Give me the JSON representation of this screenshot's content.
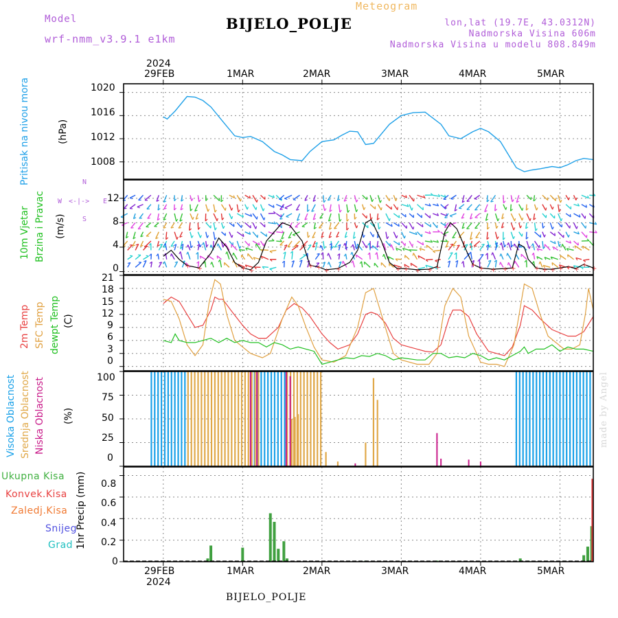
{
  "header": {
    "model_label": "Model",
    "model_name": "wrf-nmm_v3.9.1 e1km",
    "meteogram_label": "Meteogram",
    "station": "BIJELO_POLJE",
    "lonlat": "lon,lat (19.7E, 43.0312N)",
    "elevation": "Nadmorska Visina 606m",
    "model_elevation": "Nadmorska Visina u modelu 808.849m"
  },
  "time_axis": {
    "labels": [
      "29FEB",
      "1MAR",
      "2MAR",
      "3MAR",
      "4MAR",
      "5MAR"
    ],
    "year": "2024"
  },
  "panels": {
    "pressure": {
      "label": "Pritisak na nivou mora",
      "unit": "(hPa)",
      "ticks": [
        "1020",
        "1016",
        "1012",
        "1008"
      ]
    },
    "wind": {
      "label_1": "10m Vjetar",
      "label_2": "Brzina i Pravac",
      "unit": "(m/s)",
      "ticks": [
        "12",
        "8",
        "4",
        "0"
      ],
      "compass_w": "W",
      "compass_e": "E",
      "compass_n": "N",
      "compass_s": "S"
    },
    "temp": {
      "label_1": "2m Temp",
      "label_2": "SFC Temp",
      "label_3": "dewpt Temp",
      "unit": "(C)",
      "ticks": [
        "21",
        "18",
        "15",
        "12",
        "9",
        "6",
        "3",
        "0"
      ]
    },
    "cloud": {
      "label_1": "Visoka Oblacnost",
      "label_2": "Srednja Oblacnost",
      "label_3": "Niska Oblacnost",
      "unit": "(%)",
      "ticks": [
        "100",
        "75",
        "50",
        "25",
        "0"
      ]
    },
    "precip": {
      "label": "1hr Precip (mm)",
      "ticks": [
        "0.8",
        "0.6",
        "0.4",
        "0.2",
        "0"
      ],
      "legend": [
        "Ukupna Kisa",
        "Konvek.Kisa",
        "Zaledj.Kisa",
        "Snijeg",
        "Grad"
      ]
    }
  },
  "footer": {
    "station": "BIJELO_POLJE",
    "credit": "made by Angel"
  },
  "colors": {
    "pressure": "#1ea0e8",
    "temp2m": "#e84040",
    "sfc": "#e0a040",
    "dewpt": "#20c020",
    "cloud_high": "#18a0e8",
    "cloud_mid": "#e0a848",
    "cloud_low": "#c81888",
    "rain_total": "#40a040",
    "rain_conv": "#e84040",
    "rain_frz": "#f07830",
    "snow": "#5050e0",
    "hail": "#20c0c0",
    "grid": "#888888"
  },
  "chart_data": [
    {
      "type": "line",
      "title": "Pritisak na nivou mora",
      "ylabel": "(hPa)",
      "ylim": [
        1005,
        1021.5
      ],
      "x_unit": "day (0 = 29FEB 00:00)",
      "series": [
        {
          "x": [
            0,
            0.05,
            0.15,
            0.3,
            0.4,
            0.5,
            0.6,
            0.75,
            0.9,
            1.0,
            1.1,
            1.25,
            1.4,
            1.5,
            1.6,
            1.75,
            1.85,
            2.0,
            2.15,
            2.25,
            2.35,
            2.45,
            2.55,
            2.65,
            2.85,
            3.0,
            3.15,
            3.3,
            3.5,
            3.6,
            3.75,
            3.9,
            4.0,
            4.1,
            4.25,
            4.45,
            4.55,
            4.65,
            4.75,
            4.9,
            5.0,
            5.1,
            5.2,
            5.3,
            5.42
          ],
          "values": [
            1015.8,
            1015.4,
            1016.8,
            1019.3,
            1019.2,
            1018.6,
            1017.5,
            1015,
            1012.5,
            1012.2,
            1012.4,
            1011.5,
            1009.8,
            1009.2,
            1008.4,
            1008.2,
            1009.8,
            1011.5,
            1011.8,
            1012.6,
            1013.3,
            1013.2,
            1011,
            1011.2,
            1014.5,
            1016,
            1016.5,
            1016.6,
            1014.5,
            1012.5,
            1012,
            1013.2,
            1013.8,
            1013.2,
            1011.5,
            1007,
            1006.3,
            1006.6,
            1006.8,
            1007.2,
            1007,
            1007.5,
            1008.2,
            1008.6,
            1008.4
          ]
        }
      ]
    },
    {
      "type": "line",
      "title": "10m Vjetar Brzina i Pravac",
      "ylabel": "(m/s)",
      "ylim": [
        -0.5,
        15
      ],
      "x_unit": "day (0 = 29FEB 00:00)",
      "series": [
        {
          "x": [
            0,
            0.1,
            0.2,
            0.3,
            0.45,
            0.6,
            0.7,
            0.8,
            0.9,
            1.0,
            1.1,
            1.2,
            1.3,
            1.4,
            1.5,
            1.6,
            1.75,
            1.85,
            1.95,
            2.05,
            2.2,
            2.35,
            2.45,
            2.55,
            2.62,
            2.75,
            2.85,
            2.95,
            3.05,
            3.2,
            3.35,
            3.45,
            3.55,
            3.62,
            3.7,
            3.8,
            3.9,
            4.0,
            4.15,
            4.3,
            4.4,
            4.48,
            4.55,
            4.6,
            4.7,
            4.8,
            4.9,
            5.0,
            5.1,
            5.2,
            5.3,
            5.42
          ],
          "values": [
            2.5,
            3.5,
            2,
            1,
            0.6,
            3,
            5.5,
            4,
            1.5,
            0.6,
            0.3,
            1.5,
            5,
            6.5,
            8,
            7.5,
            5,
            1,
            0.8,
            0.3,
            0.5,
            1.5,
            3.5,
            8,
            8.5,
            5,
            1.5,
            0.5,
            0.5,
            0.3,
            0.4,
            0.8,
            6.5,
            8,
            7,
            4,
            1.2,
            0.6,
            0.4,
            0.5,
            0.6,
            4.5,
            4,
            2,
            0.6,
            0.4,
            0.4,
            0.6,
            0.8,
            0.5,
            1.2,
            0.6
          ]
        }
      ]
    },
    {
      "type": "line",
      "title": "Temp",
      "ylabel": "(C)",
      "ylim": [
        -1,
        21
      ],
      "x_unit": "day (0 = 29FEB 00:00)",
      "series": [
        {
          "name": "2m Temp",
          "x": [
            0,
            0.1,
            0.2,
            0.3,
            0.4,
            0.5,
            0.6,
            0.65,
            0.7,
            0.75,
            0.85,
            1.0,
            1.1,
            1.2,
            1.3,
            1.45,
            1.55,
            1.65,
            1.75,
            1.85,
            2.0,
            2.1,
            2.2,
            2.35,
            2.45,
            2.55,
            2.62,
            2.7,
            2.8,
            2.9,
            3.0,
            3.2,
            3.3,
            3.4,
            3.5,
            3.6,
            3.65,
            3.75,
            3.85,
            3.95,
            4.1,
            4.2,
            4.3,
            4.4,
            4.5,
            4.55,
            4.65,
            4.75,
            4.9,
            5.1,
            5.2,
            5.3,
            5.42
          ],
          "values": [
            14.5,
            16,
            15,
            12,
            9,
            9.5,
            13,
            16,
            15.5,
            15.5,
            13,
            9.5,
            7.5,
            6.5,
            6.5,
            9,
            13,
            14.5,
            13.5,
            11.5,
            7.5,
            5.5,
            4,
            5,
            7.5,
            12,
            12.5,
            12,
            10,
            6.5,
            5,
            4,
            3.5,
            3.3,
            5,
            11,
            13,
            13,
            11.5,
            7.5,
            3.5,
            3,
            2.5,
            4.5,
            9.5,
            14,
            13,
            11,
            8.5,
            7,
            7,
            8,
            11.5
          ]
        },
        {
          "name": "SFC Temp",
          "x": [
            0,
            0.1,
            0.2,
            0.3,
            0.4,
            0.5,
            0.58,
            0.65,
            0.72,
            0.8,
            0.9,
            1.0,
            1.1,
            1.25,
            1.35,
            1.5,
            1.62,
            1.7,
            1.8,
            1.9,
            2.0,
            2.15,
            2.3,
            2.45,
            2.55,
            2.65,
            2.75,
            2.9,
            3.0,
            3.2,
            3.35,
            3.45,
            3.55,
            3.65,
            3.75,
            3.85,
            4.0,
            4.1,
            4.2,
            4.3,
            4.42,
            4.55,
            4.65,
            4.75,
            4.85,
            5.05,
            5.15,
            5.25,
            5.32,
            5.36,
            5.42
          ],
          "values": [
            15.5,
            15,
            11,
            5,
            2.5,
            5,
            15,
            20,
            19,
            12,
            6,
            4.5,
            3,
            2,
            3,
            11,
            16,
            14,
            9,
            4.5,
            1.5,
            1,
            2.5,
            9,
            17,
            18,
            12,
            3,
            1.5,
            0.5,
            0.5,
            3,
            14,
            18,
            16,
            7,
            1,
            0.5,
            0.5,
            0,
            5,
            19,
            18,
            12,
            7,
            4,
            4,
            5,
            12,
            18,
            13
          ]
        },
        {
          "name": "dewpt Temp",
          "x": [
            0,
            0.1,
            0.15,
            0.2,
            0.3,
            0.4,
            0.5,
            0.6,
            0.7,
            0.8,
            0.9,
            1.0,
            1.1,
            1.2,
            1.3,
            1.4,
            1.5,
            1.6,
            1.7,
            1.8,
            1.9,
            2.0,
            2.1,
            2.3,
            2.4,
            2.5,
            2.6,
            2.7,
            2.8,
            2.9,
            3.0,
            3.2,
            3.3,
            3.4,
            3.5,
            3.6,
            3.7,
            3.8,
            3.9,
            4.0,
            4.1,
            4.2,
            4.3,
            4.4,
            4.5,
            4.55,
            4.6,
            4.7,
            4.8,
            4.9,
            5.0,
            5.1,
            5.2,
            5.3,
            5.42
          ],
          "values": [
            6,
            5.5,
            7.5,
            6,
            5.5,
            5.5,
            6,
            6.5,
            5.5,
            6.5,
            5.5,
            6,
            5.5,
            5.5,
            4.5,
            5.5,
            5,
            4,
            4.5,
            4,
            3.5,
            0.5,
            1,
            2,
            1.8,
            2.5,
            2.3,
            3,
            2.5,
            1.5,
            2,
            1.5,
            1.5,
            3,
            3,
            2,
            2.3,
            2,
            3,
            2.5,
            1.5,
            2,
            1.5,
            2.5,
            3.5,
            4.5,
            3,
            4,
            4,
            5,
            3.5,
            4.5,
            4,
            4,
            3.5
          ]
        }
      ]
    },
    {
      "type": "bar",
      "title": "Oblacnost",
      "ylabel": "(%)",
      "ylim": [
        0,
        100
      ],
      "x_unit": "day (0 = 29FEB 00:00)",
      "series": [
        {
          "name": "Visoka Oblacnost",
          "ranges": [
            [
              -0.15,
              0.3,
              100
            ],
            [
              1.15,
              1.55,
              100
            ],
            [
              4.45,
              5.42,
              100
            ]
          ]
        },
        {
          "name": "Srednja Oblacnost",
          "ranges": [
            [
              0.3,
              1.2,
              100
            ],
            [
              1.55,
              2.0,
              100
            ]
          ],
          "bars": [
            [
              1.62,
              50
            ],
            [
              1.66,
              52
            ],
            [
              1.7,
              55
            ],
            [
              1.9,
              100
            ],
            [
              2.05,
              15
            ],
            [
              2.2,
              5
            ],
            [
              2.55,
              25
            ],
            [
              2.65,
              93
            ],
            [
              2.7,
              70
            ]
          ]
        },
        {
          "name": "Niska Oblacnost",
          "bars": [
            [
              1.1,
              100
            ],
            [
              1.18,
              100
            ],
            [
              1.55,
              100
            ],
            [
              1.6,
              95
            ],
            [
              2.42,
              3
            ],
            [
              3.45,
              35
            ],
            [
              3.5,
              8
            ],
            [
              3.85,
              7
            ],
            [
              4.0,
              5
            ]
          ]
        }
      ]
    },
    {
      "type": "bar",
      "title": "1hr Precip (mm)",
      "ylabel": "1hr Precip (mm)",
      "ylim": [
        0,
        0.88
      ],
      "x_unit": "day (0 = 29FEB 00:00)",
      "series": [
        {
          "name": "Ukupna Kisa",
          "x": [
            0.56,
            0.6,
            1.0,
            1.35,
            1.4,
            1.45,
            1.52,
            1.56,
            2.55,
            3.45,
            4.5,
            4.6,
            5.05,
            5.3,
            5.35,
            5.4
          ],
          "values": [
            0.03,
            0.15,
            0.13,
            0.45,
            0.37,
            0.12,
            0.19,
            0.03,
            0.01,
            0.01,
            0.03,
            0.01,
            0.01,
            0.06,
            0.14,
            0.33
          ]
        },
        {
          "name": "Konvek.Kisa",
          "x": [
            5.41
          ],
          "values": [
            0.77
          ]
        }
      ]
    }
  ]
}
